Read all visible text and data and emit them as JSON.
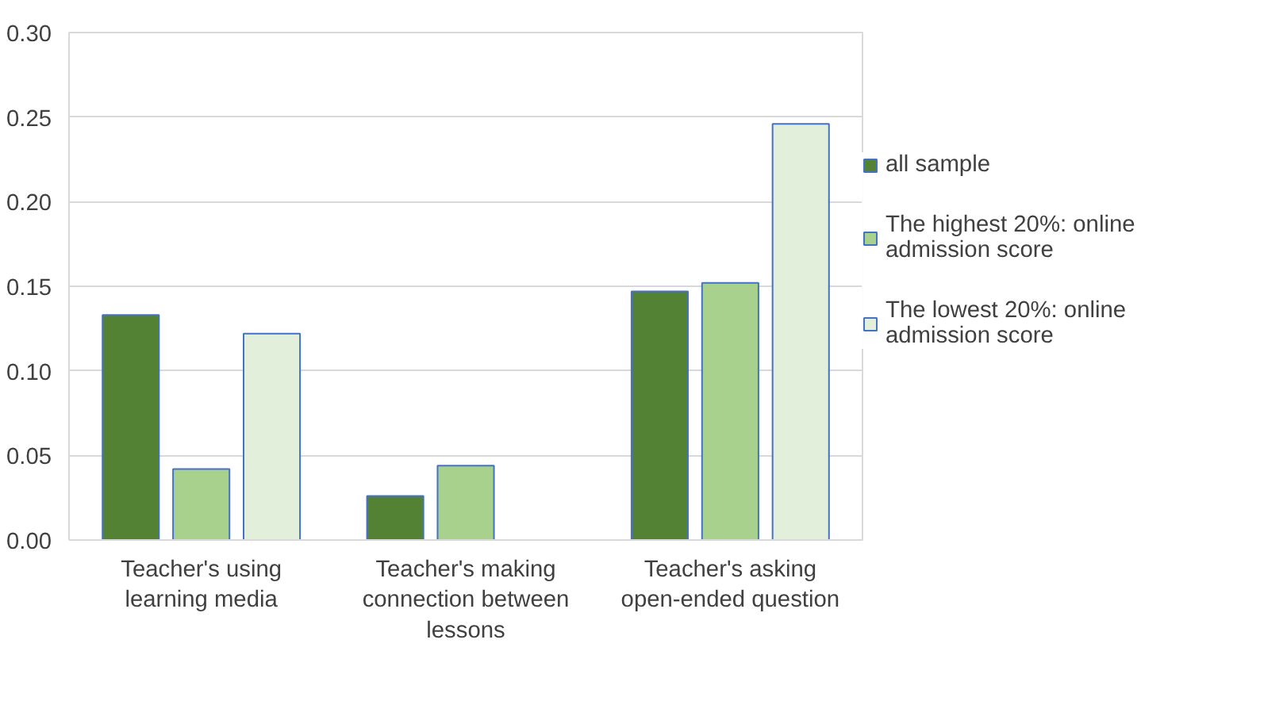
{
  "chart_data": {
    "type": "bar",
    "categories": [
      "Teacher's using learning media",
      "Teacher's making connection between lessons",
      "Teacher's asking open-ended question"
    ],
    "series": [
      {
        "name": "all sample",
        "color": "#548235",
        "values": [
          0.133,
          0.026,
          0.147
        ]
      },
      {
        "name": "The highest 20%: online admission score",
        "color": "#a9d18e",
        "values": [
          0.042,
          0.044,
          0.152
        ]
      },
      {
        "name": "The lowest 20%: online admission score",
        "color": "#e2efda",
        "values": [
          0.122,
          null,
          0.246
        ]
      }
    ],
    "ylim": [
      0,
      0.3
    ],
    "yticks": [
      {
        "value": 0,
        "label": "0.00"
      },
      {
        "value": 0.05,
        "label": "0.05"
      },
      {
        "value": 0.1,
        "label": "0.10"
      },
      {
        "value": 0.15,
        "label": "0.15"
      },
      {
        "value": 0.2,
        "label": "0.20"
      },
      {
        "value": 0.25,
        "label": "0.25"
      },
      {
        "value": 0.3,
        "label": "0.30"
      }
    ],
    "grid": "y",
    "legend": "right"
  }
}
